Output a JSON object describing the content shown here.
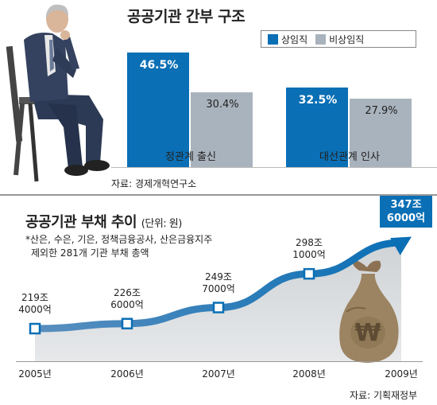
{
  "top": {
    "title": "공공기관 간부 구조",
    "legend": [
      {
        "label": "상임직",
        "color": "#0a6fb5"
      },
      {
        "label": "비상임직",
        "color": "#a9b3bd"
      }
    ],
    "source": "자료: 경제개혁연구소"
  },
  "bottom": {
    "title": "공공기관 부채 추이",
    "unit": "(단위: 원)",
    "note_line1": "*산은, 수은, 기은, 정책금융공사, 산은금융지주",
    "note_line2": "제외한 281개 기관 부채 총액",
    "callout_line1": "347조",
    "callout_line2": "6000억",
    "source": "자료: 기획재정부"
  },
  "chart_data": [
    {
      "type": "bar",
      "title": "공공기관 간부 구조",
      "categories": [
        "정관계 출신",
        "대선관계 인사"
      ],
      "series": [
        {
          "name": "상임직",
          "values": [
            46.5,
            32.5
          ],
          "labels": [
            "46.5%",
            "32.5%"
          ]
        },
        {
          "name": "비상임직",
          "values": [
            30.4,
            27.9
          ],
          "labels": [
            "30.4%",
            "27.9%"
          ]
        }
      ],
      "ylim": [
        0,
        55
      ]
    },
    {
      "type": "line",
      "title": "공공기관 부채 추이",
      "x": [
        "2005년",
        "2006년",
        "2007년",
        "2008년",
        "2009년"
      ],
      "values": [
        219.4,
        226.6,
        249.7,
        298.1,
        347.6
      ],
      "labels": [
        [
          "219조",
          "4000억"
        ],
        [
          "226조",
          "6000억"
        ],
        [
          "249조",
          "7000억"
        ],
        [
          "298조",
          "1000억"
        ],
        [
          "347조",
          "6000억"
        ]
      ]
    }
  ]
}
